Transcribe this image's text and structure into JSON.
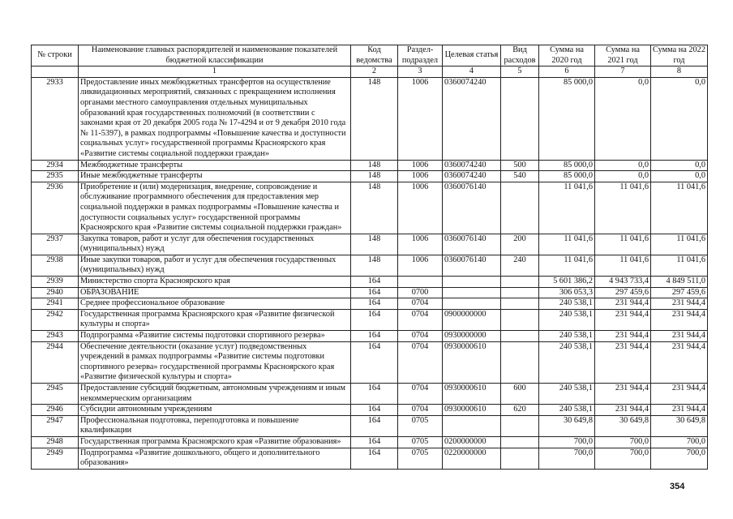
{
  "table": {
    "header": [
      "№ строки",
      "Наименование главных распорядителей и наименование показателей бюджетной классификации",
      "Код ведомства",
      "Раздел-подраздел",
      "Целевая статья",
      "Вид расходов",
      "Сумма на 2020 год",
      "Сумма на 2021 год",
      "Сумма на 2022 год"
    ],
    "numbering": [
      "1",
      "2",
      "3",
      "4",
      "5",
      "6",
      "7",
      "8"
    ],
    "rows": [
      {
        "no": "2933",
        "name": "Предоставление иных межбюджетных трансфертов на осуществление ликвидационных мероприятий, связанных с прекращением исполнения органами местного самоуправления отдельных муниципальных образований края государственных полномочий (в соответствии с законами края от 20 декабря 2005 года № 17-4294 и от 9 декабря 2010 года № 11-5397), в рамках подпрограммы «Повышение качества и доступности социальных услуг» государственной программы Красноярского края «Развитие системы социальной поддержки граждан»",
        "dept": "148",
        "section": "1006",
        "target": "0360074240",
        "s2020": "85 000,0",
        "s2021": "0,0",
        "s2022": "0,0"
      },
      {
        "no": "2934",
        "name": "Межбюджетные трансферты",
        "dept": "148",
        "section": "1006",
        "target": "0360074240",
        "kind": "500",
        "s2020": "85 000,0",
        "s2021": "0,0",
        "s2022": "0,0"
      },
      {
        "no": "2935",
        "name": "Иные межбюджетные трансферты",
        "dept": "148",
        "section": "1006",
        "target": "0360074240",
        "kind": "540",
        "s2020": "85 000,0",
        "s2021": "0,0",
        "s2022": "0,0"
      },
      {
        "no": "2936",
        "name": "Приобретение и (или) модернизация, внедрение, сопровождение и обслуживание программного обеспечения для предоставления мер социальной поддержки в рамках подпрограммы «Повышение качества и доступности социальных услуг» государственной программы Красноярского края «Развитие системы социальной поддержки граждан»",
        "dept": "148",
        "section": "1006",
        "target": "0360076140",
        "s2020": "11 041,6",
        "s2021": "11 041,6",
        "s2022": "11 041,6"
      },
      {
        "no": "2937",
        "name": "Закупка товаров, работ и услуг для обеспечения государственных (муниципальных) нужд",
        "dept": "148",
        "section": "1006",
        "target": "0360076140",
        "kind": "200",
        "s2020": "11 041,6",
        "s2021": "11 041,6",
        "s2022": "11 041,6"
      },
      {
        "no": "2938",
        "name": "Иные закупки товаров, работ и услуг для обеспечения государственных (муниципальных) нужд",
        "dept": "148",
        "section": "1006",
        "target": "0360076140",
        "kind": "240",
        "s2020": "11 041,6",
        "s2021": "11 041,6",
        "s2022": "11 041,6"
      },
      {
        "no": "2939",
        "name": "Министерство спорта Красноярского края",
        "dept": "164",
        "s2020": "5 601 386,2",
        "s2021": "4 943 733,4",
        "s2022": "4 849 511,0"
      },
      {
        "no": "2940",
        "name": "ОБРАЗОВАНИЕ",
        "dept": "164",
        "section": "0700",
        "s2020": "306 053,3",
        "s2021": "297 459,6",
        "s2022": "297 459,6"
      },
      {
        "no": "2941",
        "name": "Среднее профессиональное образование",
        "dept": "164",
        "section": "0704",
        "s2020": "240 538,1",
        "s2021": "231 944,4",
        "s2022": "231 944,4"
      },
      {
        "no": "2942",
        "name": "Государственная программа Красноярского края «Развитие физической культуры и спорта»",
        "dept": "164",
        "section": "0704",
        "target": "0900000000",
        "s2020": "240 538,1",
        "s2021": "231 944,4",
        "s2022": "231 944,4"
      },
      {
        "no": "2943",
        "name": "Подпрограмма «Развитие системы подготовки спортивного резерва»",
        "dept": "164",
        "section": "0704",
        "target": "0930000000",
        "s2020": "240 538,1",
        "s2021": "231 944,4",
        "s2022": "231 944,4"
      },
      {
        "no": "2944",
        "name": "Обеспечение деятельности (оказание услуг) подведомственных учреждений в рамках подпрограммы «Развитие системы подготовки спортивного резерва» государственной программы Красноярского края «Развитие физической культуры и спорта»",
        "dept": "164",
        "section": "0704",
        "target": "0930000610",
        "s2020": "240 538,1",
        "s2021": "231 944,4",
        "s2022": "231 944,4"
      },
      {
        "no": "2945",
        "name": "Предоставление субсидий бюджетным, автономным учреждениям и иным некоммерческим организациям",
        "dept": "164",
        "section": "0704",
        "target": "0930000610",
        "kind": "600",
        "s2020": "240 538,1",
        "s2021": "231 944,4",
        "s2022": "231 944,4"
      },
      {
        "no": "2946",
        "name": "Субсидии автономным учреждениям",
        "dept": "164",
        "section": "0704",
        "target": "0930000610",
        "kind": "620",
        "s2020": "240 538,1",
        "s2021": "231 944,4",
        "s2022": "231 944,4"
      },
      {
        "no": "2947",
        "name": "Профессиональная подготовка, переподготовка и повышение квалификации",
        "dept": "164",
        "section": "0705",
        "s2020": "30 649,8",
        "s2021": "30 649,8",
        "s2022": "30 649,8"
      },
      {
        "no": "2948",
        "name": "Государственная программа Красноярского края «Развитие образования»",
        "dept": "164",
        "section": "0705",
        "target": "0200000000",
        "s2020": "700,0",
        "s2021": "700,0",
        "s2022": "700,0"
      },
      {
        "no": "2949",
        "name": "Подпрограмма «Развитие дошкольного, общего и дополнительного образования»",
        "dept": "164",
        "section": "0705",
        "target": "0220000000",
        "s2020": "700,0",
        "s2021": "700,0",
        "s2022": "700,0"
      }
    ]
  },
  "page_number": "354"
}
